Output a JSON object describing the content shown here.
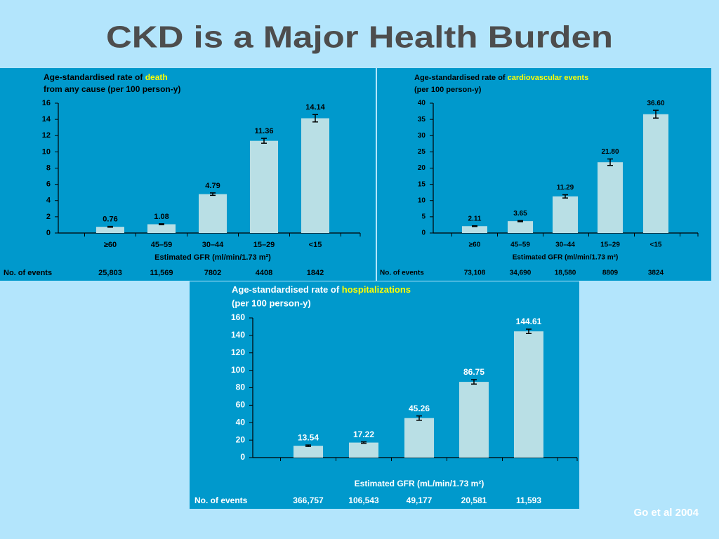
{
  "title": "CKD is a Major Health Burden",
  "footnote": "Go et al 2004",
  "chart_data": [
    {
      "type": "bar",
      "title_prefix": "Age-standardised rate of ",
      "title_highlight": "death",
      "title_line2": "from any cause (per 100 person-y)",
      "categories": [
        "≥60",
        "45–59",
        "30–44",
        "15–29",
        "<15"
      ],
      "values": [
        0.76,
        1.08,
        4.79,
        11.36,
        14.14
      ],
      "errors": [
        0.05,
        0.05,
        0.15,
        0.3,
        0.45
      ],
      "color": "#b9dfe5",
      "highlight_color": "#ffff00",
      "ylim": [
        0,
        16
      ],
      "yticks": [
        0,
        2,
        4,
        6,
        8,
        10,
        12,
        14,
        16
      ],
      "x_label": "Estimated GFR (ml/min/1.73 m²)",
      "events_label": "No. of events",
      "events": [
        "25,803",
        "11,569",
        "7802",
        "4408",
        "1842"
      ]
    },
    {
      "type": "bar",
      "title_prefix": "Age-standardised rate of ",
      "title_highlight": "cardiovascular events",
      "title_line2": "(per 100 person-y)",
      "categories": [
        "≥60",
        "45–59",
        "30–44",
        "15–29",
        "<15"
      ],
      "values": [
        2.11,
        3.65,
        11.29,
        21.8,
        36.6
      ],
      "value_labels": [
        "2.11",
        "3.65",
        "11.29",
        "21.80",
        "36.60"
      ],
      "errors": [
        0.1,
        0.15,
        0.5,
        1.0,
        1.2
      ],
      "color": "#b9dfe5",
      "highlight_color": "#ffff00",
      "ylim": [
        0,
        40
      ],
      "yticks": [
        0,
        5,
        10,
        15,
        20,
        25,
        30,
        35,
        40
      ],
      "x_label": "Estimated GFR (ml/min/1.73 m²)",
      "events_label": "No. of events",
      "events": [
        "73,108",
        "34,690",
        "18,580",
        "8809",
        "3824"
      ]
    },
    {
      "type": "bar",
      "title_prefix": "Age-standardised rate of ",
      "title_highlight": "hospitalizations",
      "title_line2": "(per 100 person-y)",
      "values": [
        13.54,
        17.22,
        45.26,
        86.75,
        144.61
      ],
      "errors": [
        0.8,
        0.8,
        2.5,
        2.5,
        2.5
      ],
      "color": "#b9dfe5",
      "highlight_color": "#ffff00",
      "ylim": [
        0,
        160
      ],
      "yticks": [
        0,
        20,
        40,
        60,
        80,
        100,
        120,
        140,
        160
      ],
      "x_label": "Estimated GFR (mL/min/1.73 m²)",
      "events_label": "No. of events",
      "events": [
        "366,757",
        "106,543",
        "49,177",
        "20,581",
        "11,593"
      ]
    }
  ]
}
